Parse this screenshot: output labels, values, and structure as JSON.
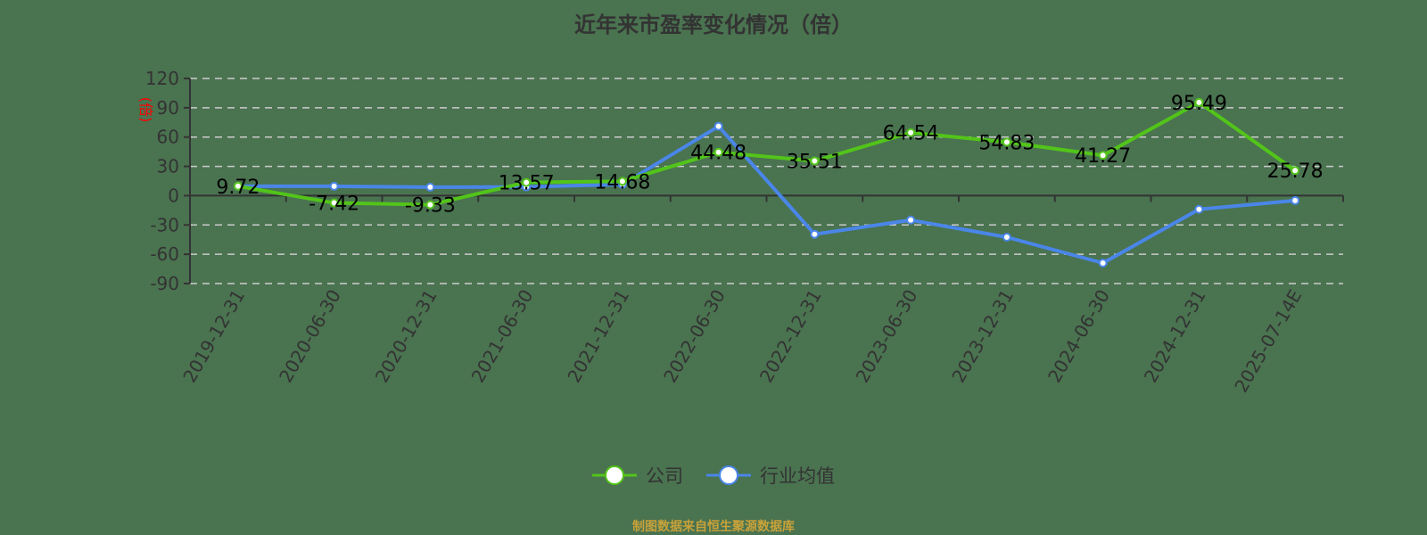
{
  "title": "近年来市盈率变化情况（倍）",
  "source_note": "制图数据来自恒生聚源数据库",
  "legend": {
    "items": [
      {
        "label": "公司",
        "color": "#52c41a"
      },
      {
        "label": "行业均值",
        "color": "#4a86e8"
      }
    ]
  },
  "colors": {
    "background": "#4a7350",
    "company": "#52c41a",
    "industry": "#4a86e8",
    "axis": "#333333",
    "grid": "#cccccc",
    "ylabel": "#ff0000",
    "source": "#c8a23a"
  },
  "chart_data": {
    "type": "line",
    "title": "近年来市盈率变化情况（倍）",
    "xlabel": "",
    "ylabel": "(倍)",
    "ylim": [
      -90,
      120
    ],
    "yticks": [
      120,
      90,
      60,
      30,
      0,
      -30,
      -60,
      -90
    ],
    "grid": true,
    "legend_position": "bottom",
    "categories": [
      "2019-12-31",
      "2020-06-30",
      "2020-12-31",
      "2021-06-30",
      "2021-12-31",
      "2022-06-30",
      "2022-12-31",
      "2023-06-30",
      "2023-12-31",
      "2024-06-30",
      "2024-12-31",
      "2025-07-14E"
    ],
    "series": [
      {
        "name": "公司",
        "values": [
          9.72,
          -7.42,
          -9.33,
          13.57,
          14.68,
          44.48,
          35.51,
          64.54,
          54.83,
          41.27,
          95.49,
          25.78
        ],
        "labeled": true
      },
      {
        "name": "行业均值",
        "values": [
          9.6,
          9.6,
          8.7,
          9.0,
          11.5,
          71.0,
          -39.5,
          -25.0,
          -42.5,
          -69.0,
          -14.0,
          -5.0
        ],
        "labeled": false
      }
    ]
  }
}
